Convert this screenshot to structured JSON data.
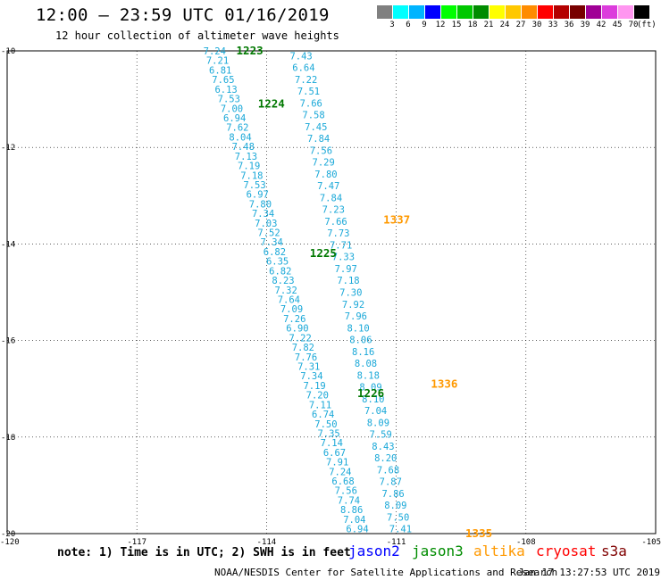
{
  "header": {
    "title": "12:00 — 23:59 UTC 01/16/2019",
    "subtitle": "12 hour collection of altimeter wave heights"
  },
  "legend": {
    "unit": "(ft)",
    "items": [
      {
        "label": "3",
        "color": "#808080"
      },
      {
        "label": "6",
        "color": "#00ffff"
      },
      {
        "label": "9",
        "color": "#00b4ff"
      },
      {
        "label": "12",
        "color": "#0000ff"
      },
      {
        "label": "15",
        "color": "#00ff00"
      },
      {
        "label": "18",
        "color": "#00c800"
      },
      {
        "label": "21",
        "color": "#008c00"
      },
      {
        "label": "24",
        "color": "#ffff00"
      },
      {
        "label": "27",
        "color": "#ffc800"
      },
      {
        "label": "30",
        "color": "#ff8c00"
      },
      {
        "label": "33",
        "color": "#ff0000"
      },
      {
        "label": "36",
        "color": "#b40000"
      },
      {
        "label": "39",
        "color": "#780000"
      },
      {
        "label": "42",
        "color": "#a00096"
      },
      {
        "label": "45",
        "color": "#dc3cdc"
      },
      {
        "label": "70",
        "color": "#ff96f0"
      },
      {
        "label": "",
        "color": "#000000"
      }
    ]
  },
  "chart_data": {
    "type": "scatter",
    "title": "12:00 — 23:59 UTC 01/16/2019",
    "subtitle": "12 hour collection of altimeter wave heights",
    "xlim": [
      -120,
      -105
    ],
    "ylim": [
      -20,
      -10
    ],
    "x_ticks": [
      -120,
      -117,
      -114,
      -111,
      -108,
      -105
    ],
    "y_ticks": [
      -10,
      -12,
      -14,
      -16,
      -18,
      -20
    ],
    "x_tick_labels": [
      "-120",
      "-117",
      "-114",
      "-111",
      "-108",
      "-105"
    ],
    "y_tick_labels": [
      "-10",
      "-12",
      "-14",
      "-16",
      "-18",
      "-20"
    ],
    "grid": true,
    "series": [
      {
        "name": "jason3",
        "color": "#1aa8d8",
        "start": [
          -115.2,
          -10.0
        ],
        "end": [
          -111.9,
          -19.9
        ],
        "values": [
          "7.24",
          "7.21",
          "6.81",
          "7.65",
          "6.13",
          "7.53",
          "7.00",
          "6.94",
          "7.62",
          "8.04",
          "7.48",
          "7.13",
          "7.19",
          "7.18",
          "7.53",
          "6.97",
          "7.80",
          "7.34",
          "7.03",
          "7.52",
          "7.34",
          "6.82",
          "6.35",
          "6.82",
          "8.23",
          "7.32",
          "7.64",
          "7.09",
          "7.26",
          "6.90",
          "7.22",
          "7.82",
          "7.76",
          "7.31",
          "7.34",
          "7.19",
          "7.20",
          "7.11",
          "6.74",
          "7.50",
          "7.35",
          "7.14",
          "6.67",
          "7.91",
          "7.24",
          "6.68",
          "7.56",
          "7.74",
          "8.86",
          "7.04",
          "6.94"
        ]
      },
      {
        "name": "altika",
        "color": "#1aa8d8",
        "start": [
          -113.2,
          -10.1
        ],
        "end": [
          -110.9,
          -19.9
        ],
        "values": [
          "7.43",
          "6.64",
          "7.22",
          "7.51",
          "7.66",
          "7.58",
          "7.45",
          "7.84",
          "7.56",
          "7.29",
          "7.80",
          "7.47",
          "7.84",
          "7.23",
          "7.66",
          "7.73",
          "7.71",
          "7.33",
          "7.97",
          "7.18",
          "7.30",
          "7.92",
          "7.96",
          "8.10",
          "8.06",
          "8.16",
          "8.08",
          "8.18",
          "8.09",
          "8.10",
          "7.04",
          "8.09",
          "7.59",
          "8.43",
          "8.20",
          "7.68",
          "7.87",
          "7.86",
          "8.09",
          "7.50",
          "7.41"
        ]
      }
    ],
    "pass_labels": [
      {
        "text": "1223",
        "x": -114.7,
        "y": -10.0,
        "color": "#007800"
      },
      {
        "text": "1224",
        "x": -114.2,
        "y": -11.1,
        "color": "#007800"
      },
      {
        "text": "1225",
        "x": -113.0,
        "y": -14.2,
        "color": "#007800"
      },
      {
        "text": "1226",
        "x": -111.9,
        "y": -17.1,
        "color": "#007800"
      },
      {
        "text": "1337",
        "x": -111.3,
        "y": -13.5,
        "color": "#ff9900"
      },
      {
        "text": "1336",
        "x": -110.2,
        "y": -16.9,
        "color": "#ff9900"
      },
      {
        "text": "1335",
        "x": -109.4,
        "y": -20.0,
        "color": "#ff9900"
      }
    ]
  },
  "footer": {
    "note": "note: 1) Time is in UTC; 2) SWH is in feet",
    "satellites": [
      {
        "label": "jason2",
        "color": "#0000ff"
      },
      {
        "label": "jason3",
        "color": "#008c00"
      },
      {
        "label": "altika",
        "color": "#ff9900"
      },
      {
        "label": "cryosat",
        "color": "#ff0000"
      },
      {
        "label": "s3a",
        "color": "#800000"
      }
    ],
    "credit": "NOAA/NESDIS Center for Satellite Applications and Research",
    "timestamp": "Jan 17 13:27:53 UTC 2019"
  }
}
